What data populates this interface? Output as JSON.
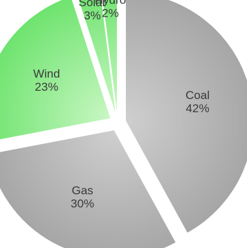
{
  "chart_data": {
    "type": "pie",
    "exploded": true,
    "start_angle_deg": 0,
    "direction": "clockwise",
    "slices": [
      {
        "label": "Coal",
        "value": 42,
        "value_text": "42%",
        "color": "#a6a6a6",
        "gradient_light": "#cfcfcf"
      },
      {
        "label": "Gas",
        "value": 30,
        "value_text": "30%",
        "color": "#a6a6a6",
        "gradient_light": "#cfcfcf"
      },
      {
        "label": "Wind",
        "value": 23,
        "value_text": "23%",
        "color": "#6ee36e",
        "gradient_light": "#c9f7c4"
      },
      {
        "label": "Solar",
        "value": 3,
        "value_text": "3%",
        "color": "#6ee36e",
        "gradient_light": "#c9f7c4"
      },
      {
        "label": "Hydro",
        "value": 2,
        "value_text": "2%",
        "color": "#6ee36e",
        "gradient_light": "#c9f7c4"
      }
    ]
  }
}
